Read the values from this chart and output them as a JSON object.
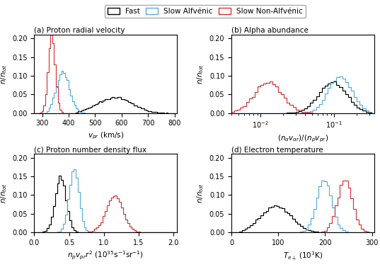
{
  "legend_labels": [
    "Fast",
    "Slow Alfvénic",
    "Slow Non-Alfvénic"
  ],
  "colors": {
    "fast": "#000000",
    "slow_alfvenic": "#5aabdd",
    "slow_nonalvenic": "#d63333"
  },
  "panels": {
    "a": {
      "title": "(a) Proton radial velocity",
      "xlabel": "$v_{pr}$ (km/s)",
      "ylabel": "$n/n_{tot}$",
      "xlim": [
        270,
        810
      ],
      "ylim": [
        0.0,
        0.21
      ],
      "xticks": [
        300,
        400,
        500,
        600,
        700,
        800
      ],
      "yticks": [
        0.0,
        0.05,
        0.1,
        0.15,
        0.2
      ],
      "nbins": 80,
      "fast": {
        "mu": 575,
        "sigma": 65,
        "low": 430,
        "high": 800,
        "n": 4000
      },
      "slow_alfvenic": {
        "mu": 378,
        "sigma": 25,
        "low": 320,
        "high": 460,
        "n": 2500
      },
      "slow_nonalv": {
        "mu": 336,
        "sigma": 13,
        "low": 295,
        "high": 390,
        "n": 2500
      }
    },
    "b": {
      "title": "(b) Alpha abundance",
      "xlabel": "$(n_{\\alpha}v_{\\alpha r})/(n_{p}v_{pr})$",
      "ylabel": "$n/n_{tot}$",
      "xlim": [
        0.004,
        0.35
      ],
      "ylim": [
        0.0,
        0.21
      ],
      "yticks": [
        0.0,
        0.05,
        0.1,
        0.15,
        0.2
      ],
      "nbins": 50,
      "fast": {
        "log10_mu": -1.02,
        "log10_sigma": 0.19,
        "low": 0.004,
        "high": 0.35,
        "n": 4000
      },
      "slow_alfvenic": {
        "log10_mu": -0.92,
        "log10_sigma": 0.16,
        "low": 0.004,
        "high": 0.35,
        "n": 2500
      },
      "slow_nonalv": {
        "log10_mu": -1.9,
        "log10_sigma": 0.19,
        "low": 0.004,
        "high": 0.05,
        "n": 2500
      }
    },
    "c": {
      "title": "(c) Proton number density flux",
      "xlabel": "$n_{p}v_{pr}r^{2}$ ($10^{35}$s$^{-1}$sr$^{-1}$)",
      "ylabel": "$n/n_{tot}$",
      "xlim": [
        0.0,
        2.05
      ],
      "ylim": [
        0.0,
        0.21
      ],
      "xticks": [
        0.0,
        0.5,
        1.0,
        1.5,
        2.0
      ],
      "yticks": [
        0.0,
        0.05,
        0.1,
        0.15,
        0.2
      ],
      "nbins": 70,
      "fast": {
        "mu": 0.38,
        "sigma": 0.08,
        "low": 0.1,
        "high": 0.75,
        "n": 4000
      },
      "slow_alfvenic": {
        "mu": 0.57,
        "sigma": 0.07,
        "low": 0.25,
        "high": 0.85,
        "n": 2500
      },
      "slow_nonalv": {
        "mu": 1.15,
        "sigma": 0.12,
        "low": 0.65,
        "high": 1.55,
        "n": 2500
      }
    },
    "d": {
      "title": "(d) Electron temperature",
      "xlabel": "$T_{e\\perp}$ ($10^{3}$K)",
      "ylabel": "$n/n_{tot}$",
      "xlim": [
        0,
        305
      ],
      "ylim": [
        0.0,
        0.21
      ],
      "xticks": [
        0,
        100,
        200,
        300
      ],
      "yticks": [
        0.0,
        0.05,
        0.1,
        0.15,
        0.2
      ],
      "nbins": 55,
      "fast": {
        "mu": 95,
        "sigma": 32,
        "low": 20,
        "high": 190,
        "n": 4000
      },
      "slow_alfvenic": {
        "mu": 198,
        "sigma": 16,
        "low": 145,
        "high": 255,
        "n": 2500
      },
      "slow_nonalv": {
        "mu": 242,
        "sigma": 16,
        "low": 185,
        "high": 300,
        "n": 2500
      }
    }
  }
}
